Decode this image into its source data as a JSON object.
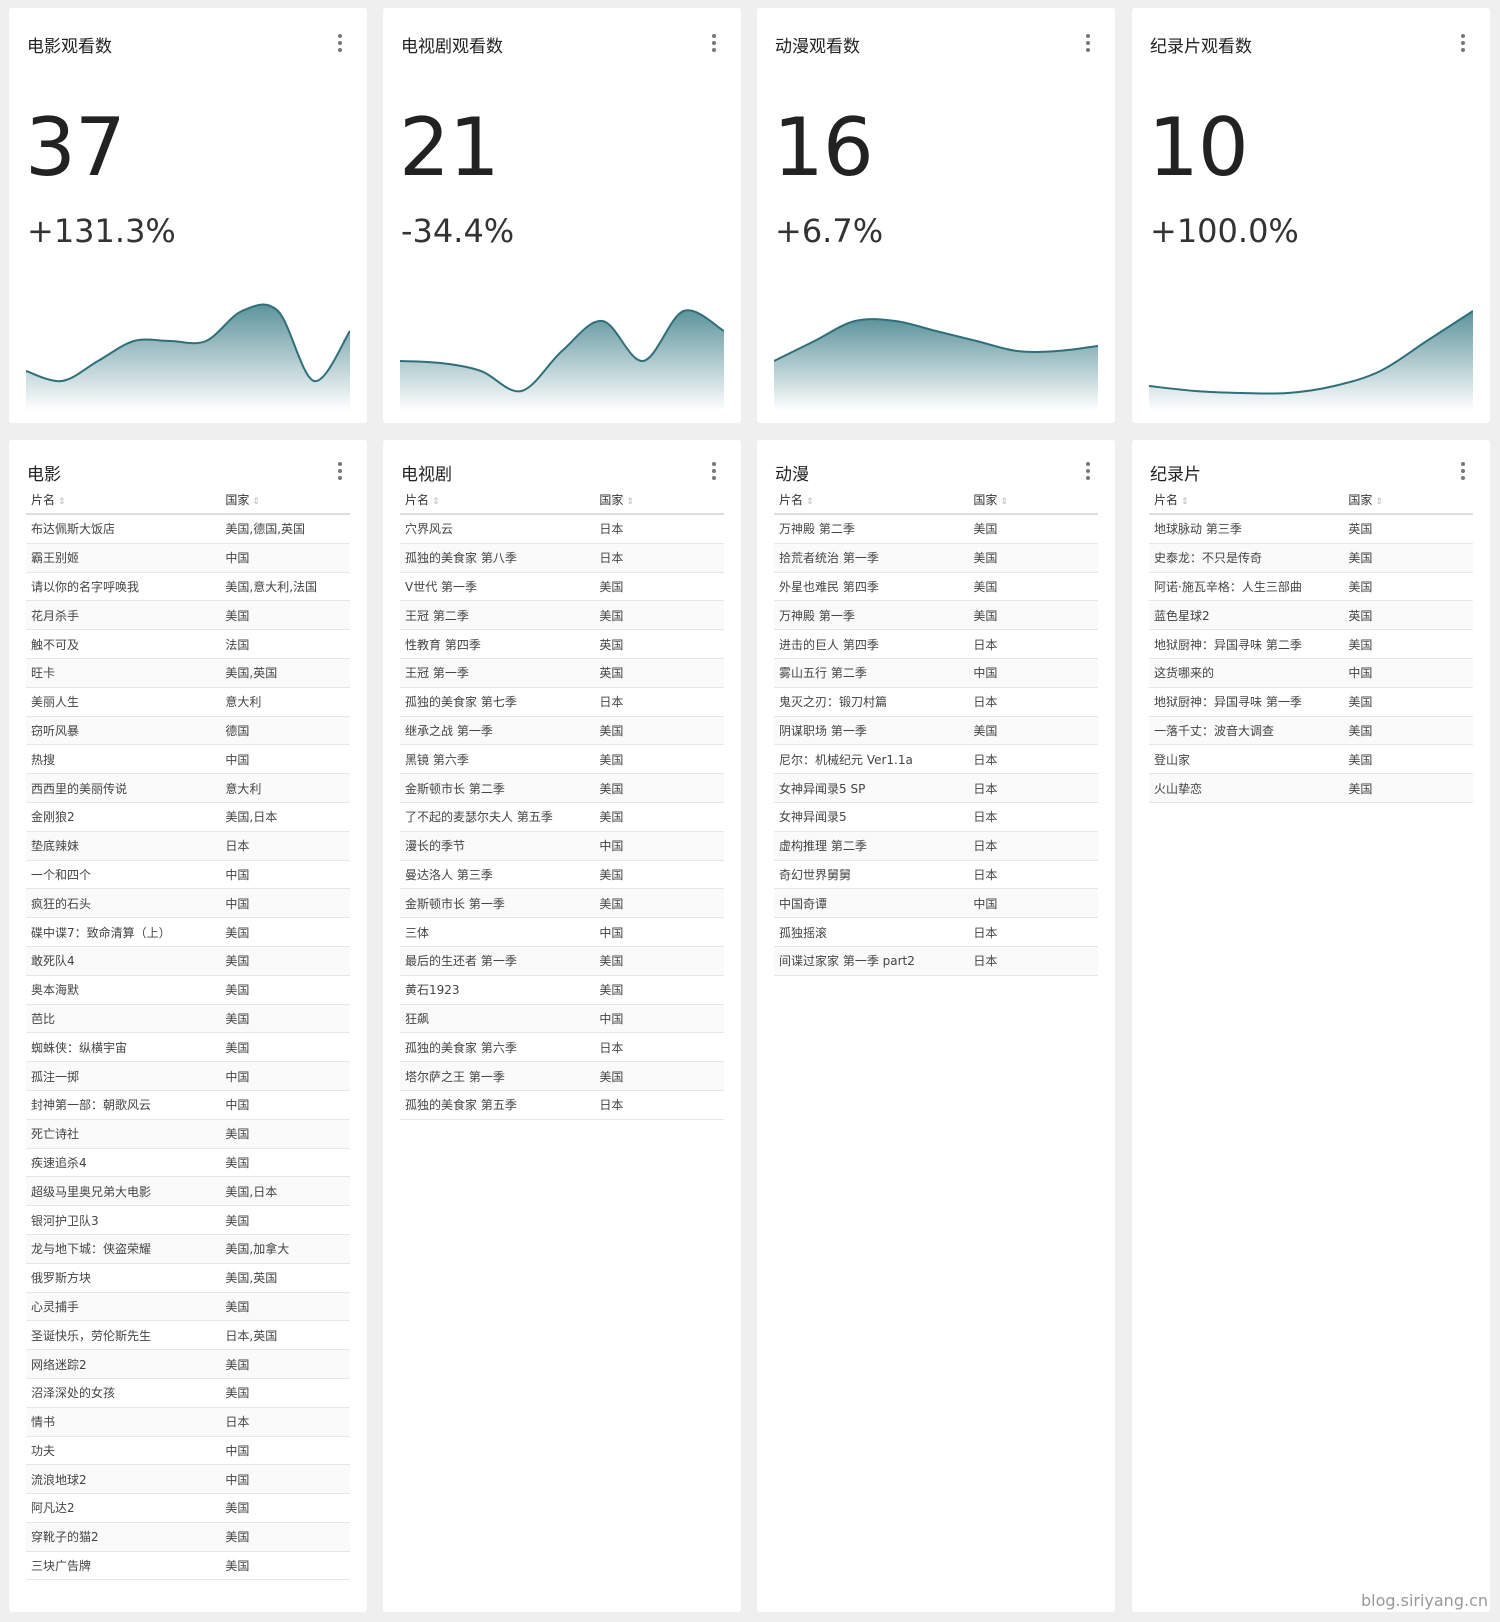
{
  "metrics": [
    {
      "title": "电影观看数",
      "value": "37",
      "change": "+131.3%",
      "trend": [
        3,
        2,
        4,
        6,
        6,
        6,
        9,
        9,
        2,
        7
      ]
    },
    {
      "title": "电视剧观看数",
      "value": "21",
      "change": "-34.4%",
      "trend": [
        4,
        3.8,
        3,
        1,
        5,
        8,
        4,
        9,
        7
      ]
    },
    {
      "title": "动漫观看数",
      "value": "16",
      "change": "+6.7%",
      "trend": [
        4,
        6,
        8,
        8,
        7,
        6,
        5,
        5,
        5.5
      ]
    },
    {
      "title": "纪录片观看数",
      "value": "10",
      "change": "+100.0%",
      "trend": [
        1.5,
        1,
        0.8,
        0.8,
        1.5,
        3,
        6,
        9
      ]
    }
  ],
  "tables": [
    {
      "title": "电影",
      "col_name": "片名",
      "col_country": "国家",
      "rows": [
        [
          "布达佩斯大饭店",
          "美国,德国,英国"
        ],
        [
          "霸王别姬",
          "中国"
        ],
        [
          "请以你的名字呼唤我",
          "美国,意大利,法国"
        ],
        [
          "花月杀手",
          "美国"
        ],
        [
          "触不可及",
          "法国"
        ],
        [
          "旺卡",
          "美国,英国"
        ],
        [
          "美丽人生",
          "意大利"
        ],
        [
          "窃听风暴",
          "德国"
        ],
        [
          "热搜",
          "中国"
        ],
        [
          "西西里的美丽传说",
          "意大利"
        ],
        [
          "金刚狼2",
          "美国,日本"
        ],
        [
          "垫底辣妹",
          "日本"
        ],
        [
          "一个和四个",
          "中国"
        ],
        [
          "疯狂的石头",
          "中国"
        ],
        [
          "碟中谍7：致命清算（上）",
          "美国"
        ],
        [
          "敢死队4",
          "美国"
        ],
        [
          "奥本海默",
          "美国"
        ],
        [
          "芭比",
          "美国"
        ],
        [
          "蜘蛛侠：纵横宇宙",
          "美国"
        ],
        [
          "孤注一掷",
          "中国"
        ],
        [
          "封神第一部：朝歌风云",
          "中国"
        ],
        [
          "死亡诗社",
          "美国"
        ],
        [
          "疾速追杀4",
          "美国"
        ],
        [
          "超级马里奥兄弟大电影",
          "美国,日本"
        ],
        [
          "银河护卫队3",
          "美国"
        ],
        [
          "龙与地下城：侠盗荣耀",
          "美国,加拿大"
        ],
        [
          "俄罗斯方块",
          "美国,英国"
        ],
        [
          "心灵捕手",
          "美国"
        ],
        [
          "圣诞快乐，劳伦斯先生",
          "日本,英国"
        ],
        [
          "网络迷踪2",
          "美国"
        ],
        [
          "沼泽深处的女孩",
          "美国"
        ],
        [
          "情书",
          "日本"
        ],
        [
          "功夫",
          "中国"
        ],
        [
          "流浪地球2",
          "中国"
        ],
        [
          "阿凡达2",
          "美国"
        ],
        [
          "穿靴子的猫2",
          "美国"
        ],
        [
          "三块广告牌",
          "美国"
        ]
      ]
    },
    {
      "title": "电视剧",
      "col_name": "片名",
      "col_country": "国家",
      "rows": [
        [
          "穴界风云",
          "日本"
        ],
        [
          "孤独的美食家 第八季",
          "日本"
        ],
        [
          "V世代 第一季",
          "美国"
        ],
        [
          "王冠 第二季",
          "美国"
        ],
        [
          "性教育 第四季",
          "英国"
        ],
        [
          "王冠 第一季",
          "英国"
        ],
        [
          "孤独的美食家 第七季",
          "日本"
        ],
        [
          "继承之战 第一季",
          "美国"
        ],
        [
          "黑镜 第六季",
          "美国"
        ],
        [
          "金斯顿市长 第二季",
          "美国"
        ],
        [
          "了不起的麦瑟尔夫人 第五季",
          "美国"
        ],
        [
          "漫长的季节",
          "中国"
        ],
        [
          "曼达洛人 第三季",
          "美国"
        ],
        [
          "金斯顿市长 第一季",
          "美国"
        ],
        [
          "三体",
          "中国"
        ],
        [
          "最后的生还者 第一季",
          "美国"
        ],
        [
          "黄石1923",
          "美国"
        ],
        [
          "狂飙",
          "中国"
        ],
        [
          "孤独的美食家 第六季",
          "日本"
        ],
        [
          "塔尔萨之王 第一季",
          "美国"
        ],
        [
          "孤独的美食家 第五季",
          "日本"
        ]
      ]
    },
    {
      "title": "动漫",
      "col_name": "片名",
      "col_country": "国家",
      "rows": [
        [
          "万神殿 第二季",
          "美国"
        ],
        [
          "拾荒者统治 第一季",
          "美国"
        ],
        [
          "外星也难民 第四季",
          "美国"
        ],
        [
          "万神殿 第一季",
          "美国"
        ],
        [
          "进击的巨人 第四季",
          "日本"
        ],
        [
          "雾山五行 第二季",
          "中国"
        ],
        [
          "鬼灭之刃：锻刀村篇",
          "日本"
        ],
        [
          "阴谋职场 第一季",
          "美国"
        ],
        [
          "尼尔：机械纪元 Ver1.1a",
          "日本"
        ],
        [
          "女神异闻录5 SP",
          "日本"
        ],
        [
          "女神异闻录5",
          "日本"
        ],
        [
          "虚构推理 第二季",
          "日本"
        ],
        [
          "奇幻世界舅舅",
          "日本"
        ],
        [
          "中国奇谭",
          "中国"
        ],
        [
          "孤独摇滚",
          "日本"
        ],
        [
          "间谍过家家 第一季 part2",
          "日本"
        ]
      ]
    },
    {
      "title": "纪录片",
      "col_name": "片名",
      "col_country": "国家",
      "rows": [
        [
          "地球脉动 第三季",
          "英国"
        ],
        [
          "史泰龙：不只是传奇",
          "美国"
        ],
        [
          "阿诺·施瓦辛格：人生三部曲",
          "美国"
        ],
        [
          "蓝色星球2",
          "英国"
        ],
        [
          "地狱厨神：异国寻味 第二季",
          "美国"
        ],
        [
          "这货哪来的",
          "中国"
        ],
        [
          "地狱厨神：异国寻味 第一季",
          "美国"
        ],
        [
          "一落千丈：波音大调查",
          "美国"
        ],
        [
          "登山家",
          "美国"
        ],
        [
          "火山挚恋",
          "美国"
        ]
      ]
    }
  ],
  "watermark": "blog.siriyang.cn",
  "colors": {
    "accent": "#2f6f7a",
    "fill_top": "#5d949c",
    "fill_bottom": "#ffffff"
  }
}
